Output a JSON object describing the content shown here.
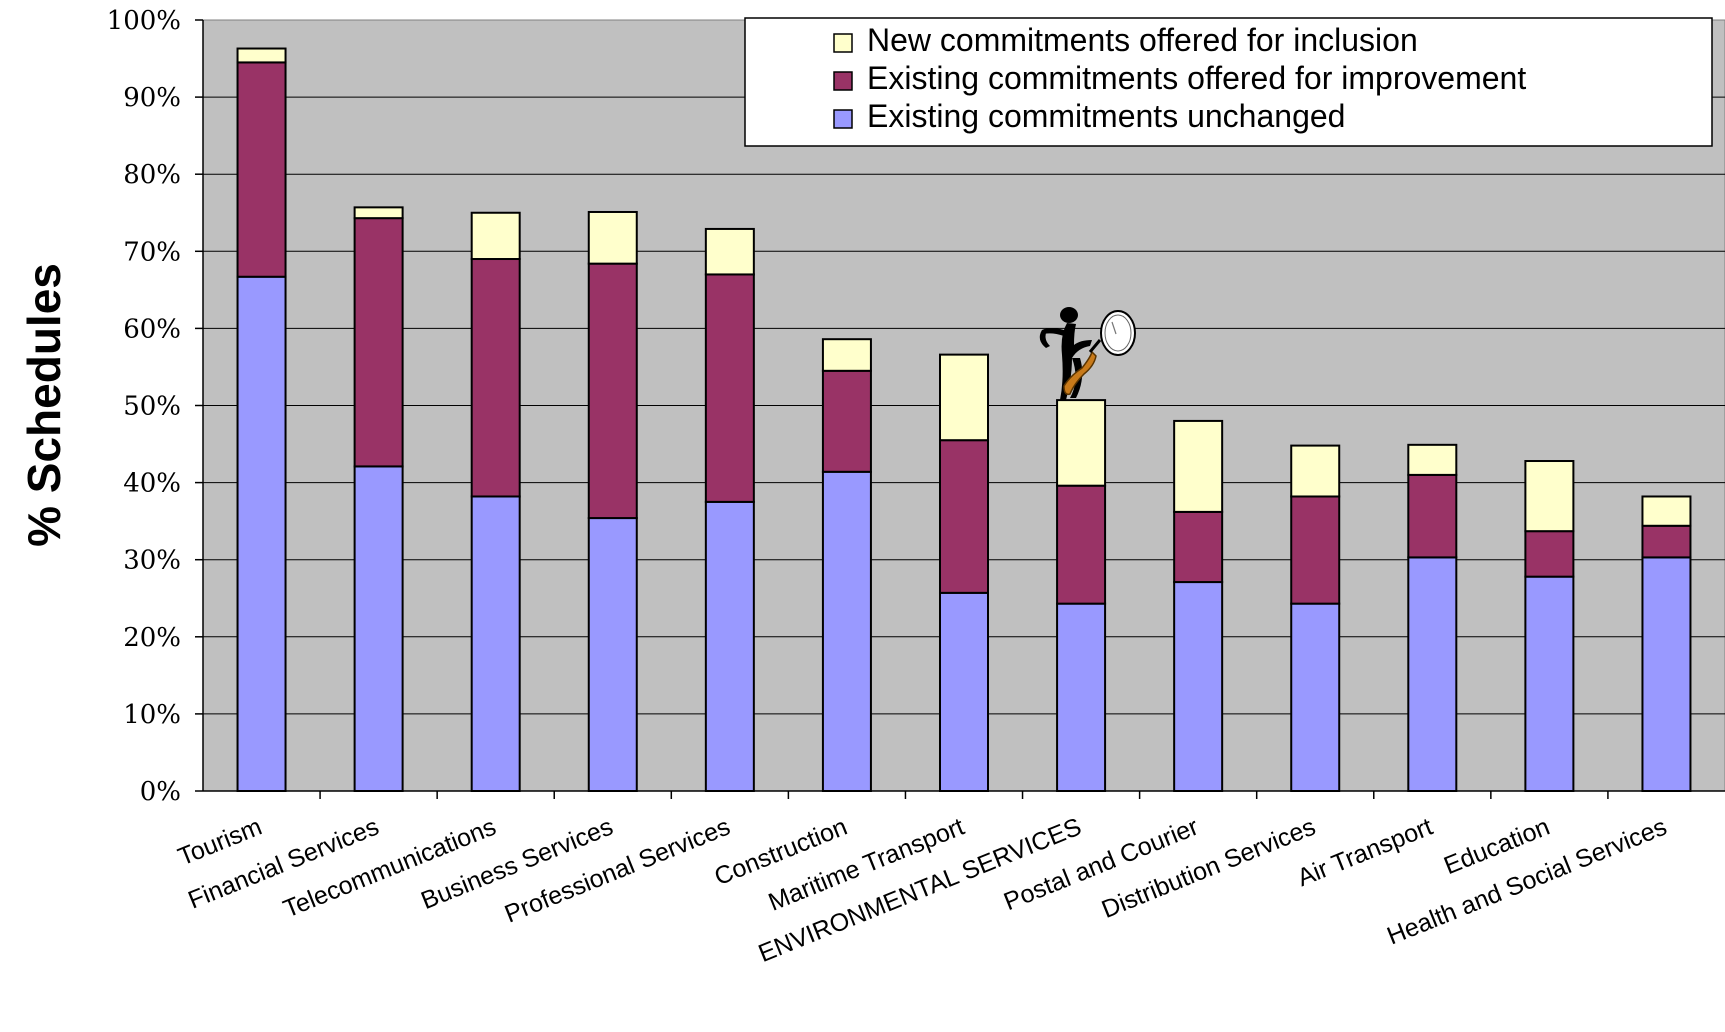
{
  "chart_data": {
    "type": "bar",
    "stacked": true,
    "title": "",
    "xlabel": "",
    "ylabel": "% Schedules",
    "ylim": [
      0,
      100
    ],
    "y_ticks": [
      "0%",
      "10%",
      "20%",
      "30%",
      "40%",
      "50%",
      "60%",
      "70%",
      "80%",
      "90%",
      "100%"
    ],
    "grid": true,
    "legend_position": "top-right",
    "categories": [
      "Tourism",
      "Financial Services",
      "Telecommunications",
      "Business Services",
      "Professional Services",
      "Construction",
      "Maritime Transport",
      "ENVIRONMENTAL SERVICES",
      "Postal and Courier",
      "Distribution Services",
      "Air Transport",
      "Education",
      "Health and Social Services"
    ],
    "series": [
      {
        "name": "Existing commitments unchanged",
        "color": "#9999ff",
        "values": [
          66.7,
          42.1,
          38.2,
          35.4,
          37.5,
          41.4,
          25.7,
          24.3,
          27.1,
          24.3,
          30.3,
          27.8,
          30.3
        ]
      },
      {
        "name": "Existing commitments offered for improvement",
        "color": "#993366",
        "values": [
          27.8,
          32.2,
          30.8,
          33.0,
          29.5,
          13.1,
          19.8,
          15.3,
          9.1,
          13.9,
          10.7,
          5.9,
          4.1
        ]
      },
      {
        "name": "New commitments offered for inclusion",
        "color": "#ffffcc",
        "values": [
          1.8,
          1.4,
          6.0,
          6.7,
          5.9,
          4.1,
          11.1,
          11.1,
          11.8,
          6.6,
          3.9,
          9.1,
          3.8
        ]
      }
    ],
    "legend_order": [
      "New commitments offered for inclusion",
      "Existing commitments offered for improvement",
      "Existing commitments unchanged"
    ],
    "plot_background": "#c0c0c0",
    "clipart_icon": "person-with-magnifying-glass-icon"
  }
}
